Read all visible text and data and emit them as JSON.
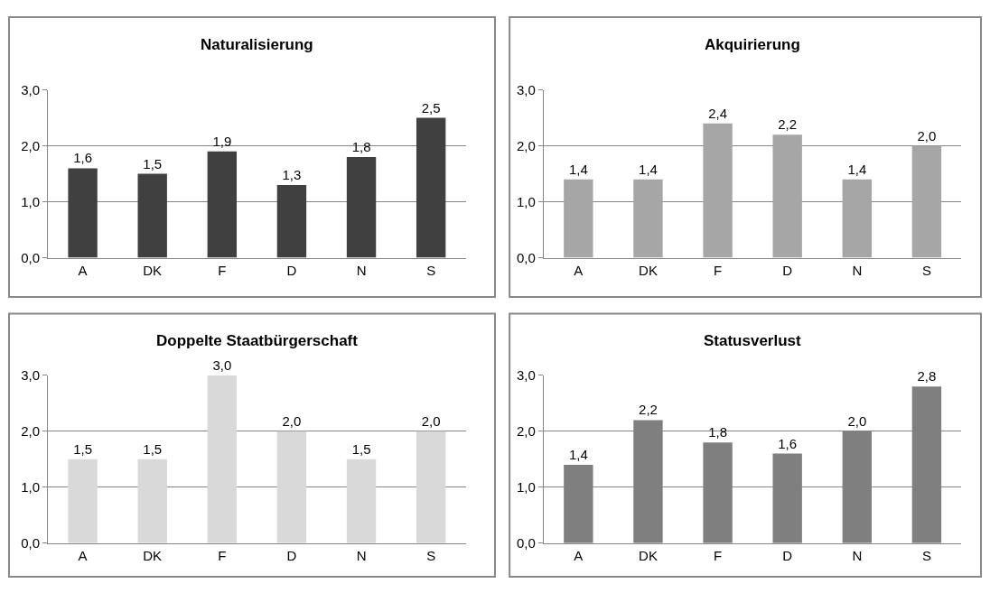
{
  "chart_data": [
    {
      "type": "bar",
      "title": "Naturalisierung",
      "categories": [
        "A",
        "DK",
        "F",
        "D",
        "N",
        "S"
      ],
      "values": [
        1.6,
        1.5,
        1.9,
        1.3,
        1.8,
        2.5
      ],
      "value_labels": [
        "1,6",
        "1,5",
        "1,9",
        "1,3",
        "1,8",
        "2,5"
      ],
      "color": "#404040",
      "ylim": [
        0,
        3
      ],
      "yticks": [
        {
          "value": 0,
          "label": "0,0"
        },
        {
          "value": 1,
          "label": "1,0"
        },
        {
          "value": 2,
          "label": "2,0"
        },
        {
          "value": 3,
          "label": "3,0"
        }
      ],
      "grid": "y"
    },
    {
      "type": "bar",
      "title": "Akquirierung",
      "categories": [
        "A",
        "DK",
        "F",
        "D",
        "N",
        "S"
      ],
      "values": [
        1.4,
        1.4,
        2.4,
        2.2,
        1.4,
        2.0
      ],
      "value_labels": [
        "1,4",
        "1,4",
        "2,4",
        "2,2",
        "1,4",
        "2,0"
      ],
      "color": "#a6a6a6",
      "ylim": [
        0,
        3
      ],
      "yticks": [
        {
          "value": 0,
          "label": "0,0"
        },
        {
          "value": 1,
          "label": "1,0"
        },
        {
          "value": 2,
          "label": "2,0"
        },
        {
          "value": 3,
          "label": "3,0"
        }
      ],
      "grid": "y"
    },
    {
      "type": "bar",
      "title": "Doppelte Staatbürgerschaft",
      "categories": [
        "A",
        "DK",
        "F",
        "D",
        "N",
        "S"
      ],
      "values": [
        1.5,
        1.5,
        3.0,
        2.0,
        1.5,
        2.0
      ],
      "value_labels": [
        "1,5",
        "1,5",
        "3,0",
        "2,0",
        "1,5",
        "2,0"
      ],
      "color": "#d9d9d9",
      "ylim": [
        0,
        3
      ],
      "yticks": [
        {
          "value": 0,
          "label": "0,0"
        },
        {
          "value": 1,
          "label": "1,0"
        },
        {
          "value": 2,
          "label": "2,0"
        },
        {
          "value": 3,
          "label": "3,0"
        }
      ],
      "grid": "y"
    },
    {
      "type": "bar",
      "title": "Statusverlust",
      "categories": [
        "A",
        "DK",
        "F",
        "D",
        "N",
        "S"
      ],
      "values": [
        1.4,
        2.2,
        1.8,
        1.6,
        2.0,
        2.8
      ],
      "value_labels": [
        "1,4",
        "2,2",
        "1,8",
        "1,6",
        "2,0",
        "2,8"
      ],
      "color": "#7f7f7f",
      "ylim": [
        0,
        3
      ],
      "yticks": [
        {
          "value": 0,
          "label": "0,0"
        },
        {
          "value": 1,
          "label": "1,0"
        },
        {
          "value": 2,
          "label": "2,0"
        },
        {
          "value": 3,
          "label": "3,0"
        }
      ],
      "grid": "y"
    }
  ]
}
